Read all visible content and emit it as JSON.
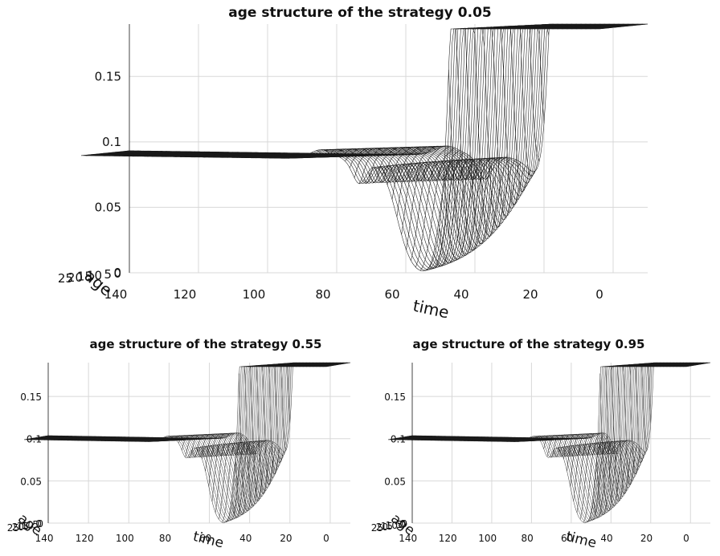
{
  "charts": [
    {
      "title": "age structure of the strategy 0.05"
    },
    {
      "title": "age structure of the strategy 0.55"
    },
    {
      "title": "age structure of the strategy 0.95"
    }
  ],
  "chart_data": [
    {
      "type": "surface",
      "title": "age structure of the strategy 0.05",
      "xlabel": "time",
      "ylabel": "age",
      "zlabel": "",
      "x_ticks": [
        "140",
        "120",
        "100",
        "80",
        "60",
        "40",
        "20",
        "0"
      ],
      "y_ticks": [
        "0",
        "5",
        "10",
        "15",
        "20",
        "25"
      ],
      "z_ticks": [
        "0",
        "0.05",
        "0.1",
        "0.15"
      ],
      "xlim": [
        0,
        150
      ],
      "ylim": [
        0,
        25
      ],
      "zlim": [
        0,
        0.19
      ],
      "grid": true,
      "plateau_density": 0.09,
      "initial_peak_time": 27,
      "dip_time": 47,
      "bump_time": 58
    },
    {
      "type": "surface",
      "title": "age structure of the strategy 0.55",
      "xlabel": "time",
      "ylabel": "age",
      "zlabel": "",
      "x_ticks": [
        "140",
        "120",
        "100",
        "80",
        "60",
        "40",
        "20",
        "0"
      ],
      "y_ticks": [
        "0",
        "5",
        "10",
        "15",
        "20",
        "25"
      ],
      "z_ticks": [
        "0",
        "0.05",
        "0.1",
        "0.15"
      ],
      "xlim": [
        0,
        150
      ],
      "ylim": [
        0,
        25
      ],
      "zlim": [
        0,
        0.19
      ],
      "grid": true,
      "plateau_density": 0.1,
      "initial_peak_time": 27,
      "dip_time": 47,
      "bump_time": 56
    },
    {
      "type": "surface",
      "title": "age structure of the strategy 0.95",
      "xlabel": "time",
      "ylabel": "age",
      "zlabel": "",
      "x_ticks": [
        "140",
        "120",
        "100",
        "80",
        "60",
        "40",
        "20",
        "0"
      ],
      "y_ticks": [
        "0",
        "5",
        "10",
        "15",
        "20",
        "25"
      ],
      "z_ticks": [
        "0",
        "0.05",
        "0.1",
        "0.15"
      ],
      "xlim": [
        0,
        150
      ],
      "ylim": [
        0,
        25
      ],
      "zlim": [
        0,
        0.19
      ],
      "grid": true,
      "plateau_density": 0.1,
      "initial_peak_time": 27,
      "dip_time": 47,
      "bump_time": 54
    }
  ]
}
